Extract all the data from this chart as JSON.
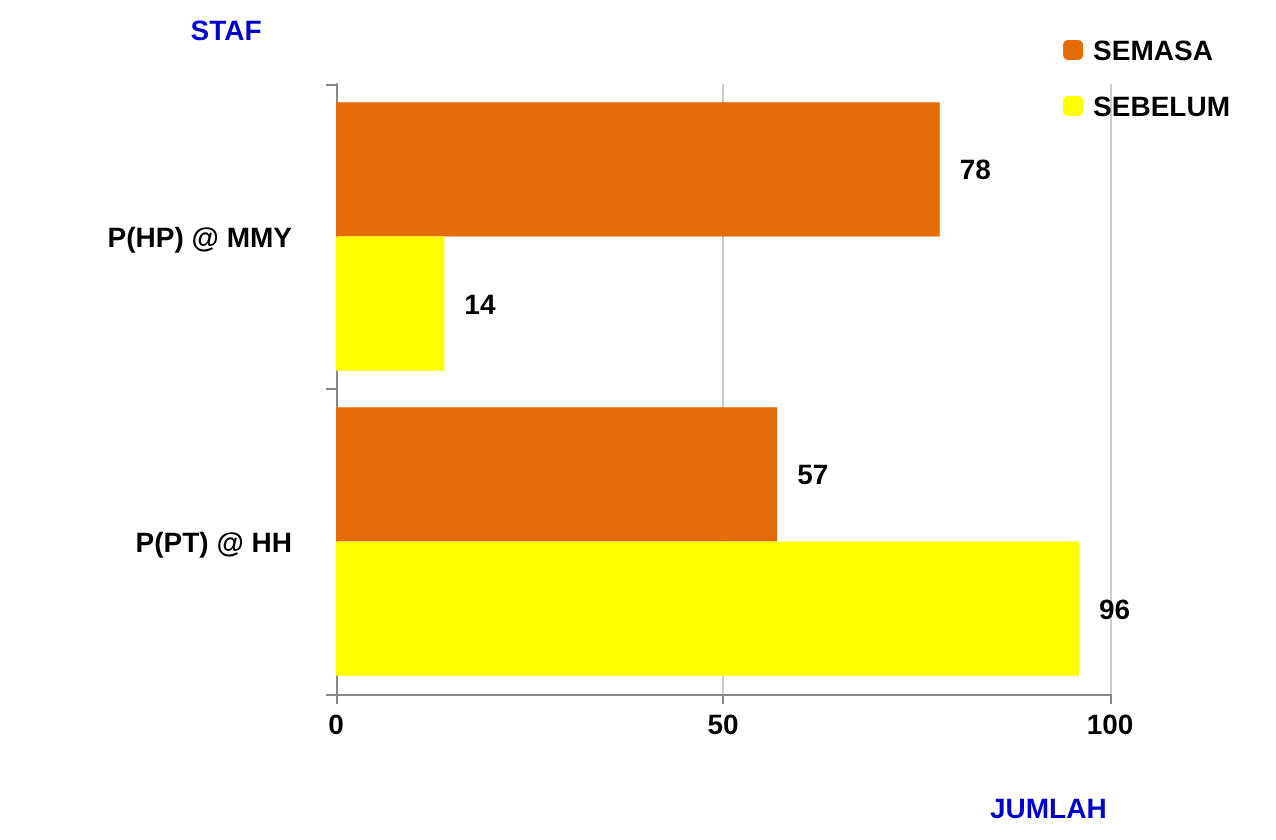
{
  "chart_data": {
    "type": "bar",
    "orientation": "horizontal",
    "xlabel": "JUMLAH",
    "ylabel": "STAF",
    "categories": [
      "P(HP) @ MMY",
      "P(PT) @ HH"
    ],
    "series": [
      {
        "name": "SEMASA",
        "color": "#e46c0a",
        "values": [
          78,
          57
        ]
      },
      {
        "name": "SEBELUM",
        "color": "#ffff00",
        "values": [
          14,
          96
        ]
      }
    ],
    "xlim": [
      0,
      100
    ],
    "xticks": [
      0,
      50,
      100
    ],
    "grid": "x",
    "legend": "top right",
    "data_labels": true
  }
}
